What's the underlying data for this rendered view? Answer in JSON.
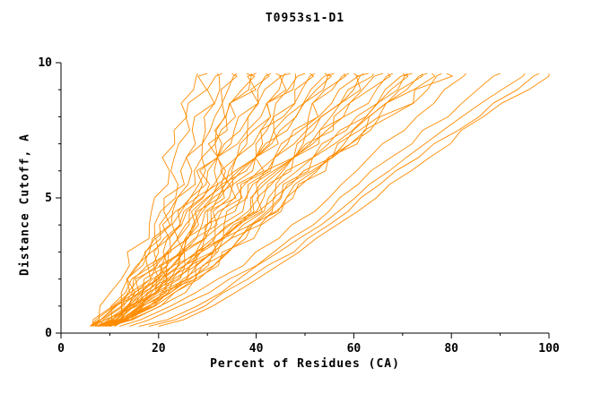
{
  "chart_data": {
    "type": "line",
    "title": "T0953s1-D1",
    "xlabel": "Percent of Residues (CA)",
    "ylabel": "Distance Cutoff, A",
    "xlim": [
      0,
      100
    ],
    "ylim": [
      0,
      10
    ],
    "x_ticks_major": [
      0,
      20,
      40,
      60,
      80,
      100
    ],
    "x_minor_step": 10,
    "y_ticks_major": [
      0,
      5,
      10
    ],
    "y_minor_step": 1,
    "grid": false,
    "legend": "none",
    "line_color": "#ff8c00",
    "axis_color": "#000000",
    "background": "#ffffff",
    "series_format": [
      "x_at_y0.25",
      "x_at_y5",
      "x_at_y9.6",
      "jitter"
    ],
    "series": [
      [
        6,
        20,
        28,
        2
      ],
      [
        7,
        22,
        30,
        2
      ],
      [
        8,
        24,
        32,
        2
      ],
      [
        6.5,
        23,
        33,
        2
      ],
      [
        9,
        26,
        35,
        2
      ],
      [
        7.5,
        25,
        36,
        2
      ],
      [
        10,
        28,
        38,
        2
      ],
      [
        8,
        27,
        39,
        2
      ],
      [
        6,
        26,
        40,
        2
      ],
      [
        11,
        30,
        42,
        2
      ],
      [
        9,
        29,
        43,
        2
      ],
      [
        7,
        28,
        44,
        2
      ],
      [
        10,
        32,
        46,
        2
      ],
      [
        8.5,
        31,
        47,
        2
      ],
      [
        6.5,
        30,
        48,
        2
      ],
      [
        11,
        34,
        50,
        2
      ],
      [
        9,
        33,
        51,
        2
      ],
      [
        7.5,
        32,
        52,
        2
      ],
      [
        10,
        36,
        54,
        2
      ],
      [
        8,
        35,
        55,
        2
      ],
      [
        6,
        34,
        56,
        2
      ],
      [
        11,
        38,
        58,
        2
      ],
      [
        9.5,
        37,
        59,
        2
      ],
      [
        7,
        36,
        60,
        2
      ],
      [
        10,
        40,
        62,
        2
      ],
      [
        8,
        39,
        63,
        2
      ],
      [
        6.5,
        38,
        64,
        2
      ],
      [
        11,
        42,
        66,
        2
      ],
      [
        9,
        41,
        67,
        2
      ],
      [
        7.5,
        40,
        68,
        2
      ],
      [
        10,
        44,
        70,
        2
      ],
      [
        8,
        43,
        71,
        2
      ],
      [
        6,
        42,
        72,
        2
      ],
      [
        11,
        46,
        74,
        2
      ],
      [
        9,
        45,
        75,
        2
      ],
      [
        7.5,
        44,
        76,
        2
      ],
      [
        10,
        47,
        78,
        2
      ],
      [
        8.5,
        46,
        79,
        2
      ],
      [
        12,
        55,
        83,
        1
      ],
      [
        14,
        58,
        90,
        1
      ],
      [
        16,
        60,
        95,
        1
      ],
      [
        18,
        62,
        98,
        1
      ],
      [
        20,
        64,
        100,
        1
      ]
    ]
  }
}
